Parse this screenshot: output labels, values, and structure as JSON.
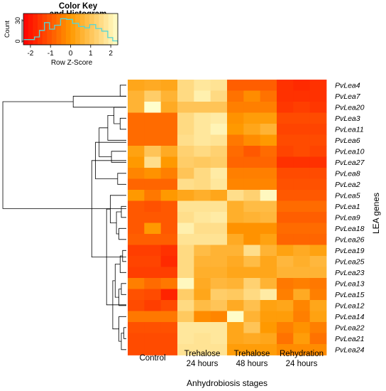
{
  "chart_data": {
    "type": "heatmap",
    "color_key": {
      "title_lines": [
        "Color Key",
        "and Histogram"
      ],
      "axis_label": "Row Z-Score",
      "count_label": "Count",
      "count_tick": "30",
      "count_zero": "0",
      "ticks": [
        "-2",
        "-1",
        "0",
        "1",
        "2"
      ],
      "tick_values": [
        -2,
        -1,
        0,
        1,
        2
      ],
      "range": [
        -2.35,
        2.35
      ],
      "histogram": [
        {
          "z": -2.35,
          "count": 8
        },
        {
          "z": -2.0,
          "count": 8
        },
        {
          "z": -1.8,
          "count": 12
        },
        {
          "z": -1.55,
          "count": 22
        },
        {
          "z": -1.3,
          "count": 34
        },
        {
          "z": -1.05,
          "count": 24
        },
        {
          "z": -0.8,
          "count": 30
        },
        {
          "z": -0.5,
          "count": 40
        },
        {
          "z": -0.2,
          "count": 39
        },
        {
          "z": 0.1,
          "count": 33
        },
        {
          "z": 0.4,
          "count": 28
        },
        {
          "z": 0.7,
          "count": 26
        },
        {
          "z": 0.95,
          "count": 31
        },
        {
          "z": 1.25,
          "count": 25
        },
        {
          "z": 1.55,
          "count": 21
        },
        {
          "z": 1.85,
          "count": 11
        },
        {
          "z": 2.1,
          "count": 6
        },
        {
          "z": 2.35,
          "count": 3
        }
      ],
      "histogram_max": 48,
      "colors": {
        "low": "#FF0000",
        "mid": "#FF9900",
        "high": "#FFFFCC",
        "histogram_line": "#55D6D6"
      }
    },
    "xlabel": "Anhydrobiosis stages",
    "ylabel": "LEA genes",
    "column_groups": [
      {
        "lines": [
          "Control"
        ],
        "columns": 3
      },
      {
        "lines": [
          "Trehalose",
          "24 hours"
        ],
        "columns": 3
      },
      {
        "lines": [
          "Trehalose",
          "48 hours"
        ],
        "columns": 3
      },
      {
        "lines": [
          "Rehydration",
          "24 hours"
        ],
        "columns": 3
      }
    ],
    "rows": [
      "PvLea4",
      "PvLea7",
      "PvLea20",
      "PvLea3",
      "PvLea11",
      "PvLea6",
      "PvLea10",
      "PvLea27",
      "PvLea8",
      "PvLea2",
      "PvLea5",
      "PvLea1",
      "PvLea9",
      "PvLea18",
      "PvLea26",
      "PvLea19",
      "PvLea25",
      "PvLea23",
      "PvLea13",
      "PvLea15",
      "PvLea12",
      "PvLea14",
      "PvLea22",
      "PvLea21",
      "PvLea24"
    ],
    "z_scores": [
      [
        0.3,
        0.4,
        0.3,
        1.5,
        1.8,
        1.7,
        -0.9,
        -0.9,
        -0.9,
        -1.6,
        -1.7,
        -1.6
      ],
      [
        0.6,
        1.2,
        0.6,
        1.5,
        2.0,
        1.5,
        -0.6,
        -0.2,
        -0.6,
        -1.6,
        -1.6,
        -1.6
      ],
      [
        0.6,
        2.4,
        0.4,
        1.0,
        1.0,
        1.0,
        -0.4,
        -0.4,
        -0.4,
        -1.5,
        -1.4,
        -1.5
      ],
      [
        -0.7,
        -0.7,
        -0.7,
        1.5,
        1.8,
        1.9,
        -0.1,
        0.1,
        0.1,
        -1.2,
        -1.2,
        -1.2
      ],
      [
        -0.7,
        -0.7,
        -0.7,
        1.5,
        1.8,
        2.1,
        0.0,
        0.3,
        0.6,
        -1.3,
        -1.3,
        -1.3
      ],
      [
        -0.7,
        -0.7,
        -0.7,
        1.6,
        1.8,
        1.7,
        -0.5,
        -0.2,
        0.0,
        -1.2,
        -1.2,
        -1.2
      ],
      [
        0.2,
        1.0,
        0.4,
        1.3,
        1.5,
        1.3,
        -0.7,
        -1.0,
        -0.7,
        -1.3,
        -1.2,
        -1.3
      ],
      [
        0.0,
        1.6,
        0.0,
        1.2,
        1.1,
        1.2,
        -0.8,
        -0.8,
        -0.8,
        -1.6,
        -1.6,
        -1.6
      ],
      [
        -0.3,
        -0.1,
        -0.4,
        1.0,
        1.5,
        1.9,
        -0.4,
        -0.4,
        -0.4,
        -1.2,
        -1.2,
        -1.2
      ],
      [
        -0.8,
        -0.8,
        -0.8,
        1.6,
        1.5,
        1.8,
        -0.3,
        -0.3,
        -0.3,
        -1.1,
        -1.1,
        -1.1
      ],
      [
        0.0,
        -0.5,
        0.0,
        0.3,
        0.5,
        0.3,
        1.6,
        1.3,
        2.2,
        -1.0,
        -1.0,
        -1.0
      ],
      [
        -1.0,
        -1.1,
        -1.0,
        1.7,
        1.7,
        1.7,
        0.5,
        0.8,
        0.8,
        -0.7,
        -0.7,
        -0.7
      ],
      [
        -1.0,
        -1.0,
        -1.0,
        1.6,
        1.8,
        1.9,
        0.5,
        0.6,
        0.7,
        -0.9,
        -0.9,
        -0.9
      ],
      [
        -1.0,
        0.0,
        -1.0,
        2.0,
        1.6,
        1.6,
        -0.1,
        -0.1,
        -0.1,
        -0.7,
        -0.7,
        -0.7
      ],
      [
        -0.9,
        -0.9,
        -0.9,
        1.7,
        1.7,
        1.7,
        0.4,
        -0.1,
        0.2,
        -0.8,
        -0.8,
        -0.8
      ],
      [
        -1.4,
        -1.4,
        -1.6,
        1.5,
        0.8,
        0.6,
        0.6,
        1.6,
        0.6,
        0.2,
        0.4,
        0.2
      ],
      [
        -1.3,
        -1.3,
        -1.7,
        1.5,
        0.6,
        0.6,
        0.4,
        0.8,
        0.3,
        0.7,
        0.5,
        0.7
      ],
      [
        -1.4,
        -1.4,
        -1.4,
        1.5,
        0.5,
        0.5,
        0.3,
        0.3,
        0.3,
        0.6,
        0.6,
        0.6
      ],
      [
        -0.4,
        -0.7,
        -0.5,
        2.2,
        0.4,
        0.7,
        0.6,
        1.3,
        0.6,
        -0.5,
        -0.4,
        -0.5
      ],
      [
        -1.1,
        -1.2,
        -1.8,
        1.2,
        0.3,
        1.2,
        1.1,
        1.5,
        1.9,
        -0.4,
        0.4,
        -0.4
      ],
      [
        -1.2,
        -1.4,
        -1.2,
        1.5,
        0.8,
        1.0,
        0.4,
        0.9,
        0.2,
        0.3,
        -0.3,
        0.3
      ],
      [
        -0.5,
        -0.5,
        -0.5,
        1.1,
        -0.2,
        -0.3,
        2.3,
        0.6,
        0.1,
        0.1,
        -0.4,
        0.2
      ],
      [
        -1.1,
        -1.1,
        -1.1,
        1.8,
        1.8,
        1.8,
        0.3,
        1.0,
        0.0,
        -0.4,
        -0.1,
        -0.4
      ],
      [
        -1.2,
        -1.2,
        -1.2,
        1.8,
        1.7,
        1.8,
        0.3,
        0.4,
        0.3,
        -0.6,
        0.1,
        -0.6
      ],
      [
        -1.2,
        -1.2,
        -1.2,
        1.7,
        1.7,
        1.7,
        0.1,
        0.1,
        0.1,
        -0.2,
        -0.2,
        -0.2
      ]
    ],
    "dendrogram": {
      "ordered_leaves": true,
      "merges": [
        {
          "rows": [
            1,
            2
          ],
          "height": 0.05
        },
        {
          "rows": [
            2,
            3
          ],
          "height": 0.43
        },
        {
          "rows": [
            4,
            5
          ],
          "height": 0.05
        },
        {
          "rows": [
            3,
            4.5
          ],
          "height": 0.1
        },
        {
          "rows": [
            3.75,
            6
          ],
          "height": 0.15
        },
        {
          "rows": [
            7,
            8
          ],
          "height": 0.12
        },
        {
          "rows": [
            4.875,
            7.5
          ],
          "height": 0.22
        },
        {
          "rows": [
            9,
            10
          ],
          "height": 0.07
        },
        {
          "rows": [
            6.19,
            9.5
          ],
          "height": 0.25
        },
        {
          "rows": [
            12,
            13
          ],
          "height": 0.04
        },
        {
          "rows": [
            14,
            15
          ],
          "height": 0.06
        },
        {
          "rows": [
            12.5,
            14.5
          ],
          "height": 0.08
        },
        {
          "rows": [
            11,
            13.5
          ],
          "height": 0.13
        },
        {
          "rows": [
            16,
            17
          ],
          "height": 0.03
        },
        {
          "rows": [
            16.5,
            18
          ],
          "height": 0.05
        },
        {
          "rows": [
            19,
            20
          ],
          "height": 0.04
        },
        {
          "rows": [
            19.5,
            21
          ],
          "height": 0.06
        },
        {
          "rows": [
            17.25,
            20.25
          ],
          "height": 0.09
        },
        {
          "rows": [
            23,
            24
          ],
          "height": 0.02
        },
        {
          "rows": [
            23.5,
            25
          ],
          "height": 0.04
        },
        {
          "rows": [
            22,
            24.25
          ],
          "height": 0.06
        },
        {
          "rows": [
            18.75,
            23.125
          ],
          "height": 0.11
        },
        {
          "rows": [
            12.25,
            20.94
          ],
          "height": 0.16
        },
        {
          "rows": [
            7.84,
            16.6
          ],
          "height": 0.28
        },
        {
          "rows": [
            2.5,
            12.2
          ],
          "height": 1.0
        }
      ]
    }
  }
}
